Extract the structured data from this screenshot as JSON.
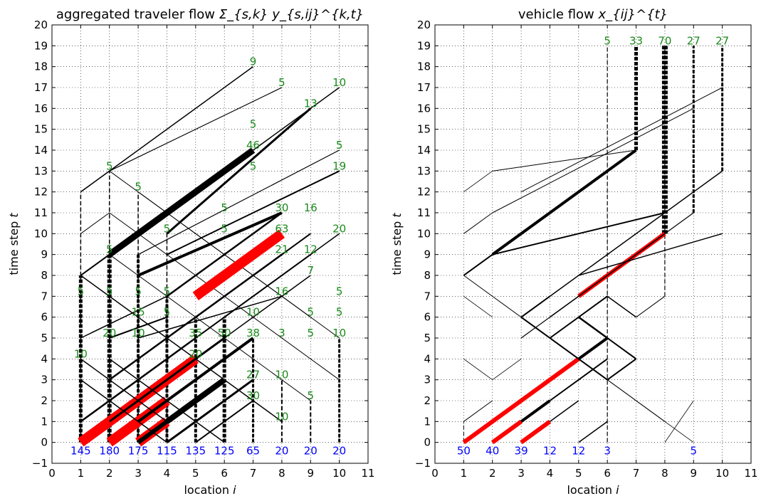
{
  "chart_data": [
    {
      "type": "line",
      "title": "aggregated traveler flow",
      "title_math": "Σ_{s,k} y_{s,ij}^{k,t}",
      "xlabel": "location",
      "xlabel_var": "i",
      "ylabel": "time step",
      "ylabel_var": "t",
      "xlim": [
        0,
        11
      ],
      "ylim": [
        -1,
        20
      ],
      "xticks": [
        "0",
        "1",
        "2",
        "3",
        "4",
        "5",
        "6",
        "7",
        "8",
        "9",
        "10",
        "11"
      ],
      "yticks": [
        "−1",
        "0",
        "1",
        "2",
        "3",
        "4",
        "5",
        "6",
        "7",
        "8",
        "9",
        "10",
        "11",
        "12",
        "13",
        "14",
        "15",
        "16",
        "17",
        "18",
        "19",
        "20"
      ],
      "grid": true,
      "colors": {
        "flow": "#000000",
        "highlight": "#ff0000",
        "label": "#1a8a1a",
        "origin_label": "#0000ff"
      },
      "origin_labels": [
        {
          "x": 1,
          "text": "145"
        },
        {
          "x": 2,
          "text": "180"
        },
        {
          "x": 3,
          "text": "175"
        },
        {
          "x": 4,
          "text": "115"
        },
        {
          "x": 5,
          "text": "135"
        },
        {
          "x": 6,
          "text": "125"
        },
        {
          "x": 7,
          "text": "65"
        },
        {
          "x": 8,
          "text": "20"
        },
        {
          "x": 9,
          "text": "20"
        },
        {
          "x": 10,
          "text": "20"
        }
      ],
      "flow_labels": [
        {
          "x": 7,
          "y": 18,
          "text": "9"
        },
        {
          "x": 8,
          "y": 17,
          "text": "5"
        },
        {
          "x": 10,
          "y": 17,
          "text": "10"
        },
        {
          "x": 9,
          "y": 16,
          "text": "13"
        },
        {
          "x": 7,
          "y": 15,
          "text": "5"
        },
        {
          "x": 7,
          "y": 14,
          "text": "46"
        },
        {
          "x": 10,
          "y": 14,
          "text": "5"
        },
        {
          "x": 2,
          "y": 13,
          "text": "5"
        },
        {
          "x": 7,
          "y": 13,
          "text": "5"
        },
        {
          "x": 10,
          "y": 13,
          "text": "19"
        },
        {
          "x": 3,
          "y": 12,
          "text": "5"
        },
        {
          "x": 6,
          "y": 11,
          "text": "5"
        },
        {
          "x": 8,
          "y": 11,
          "text": "30"
        },
        {
          "x": 9,
          "y": 11,
          "text": "16"
        },
        {
          "x": 4,
          "y": 10,
          "text": "5"
        },
        {
          "x": 6,
          "y": 10,
          "text": "5"
        },
        {
          "x": 8,
          "y": 10,
          "text": "63"
        },
        {
          "x": 10,
          "y": 10,
          "text": "20"
        },
        {
          "x": 2,
          "y": 9,
          "text": "5"
        },
        {
          "x": 8,
          "y": 9,
          "text": "21"
        },
        {
          "x": 9,
          "y": 9,
          "text": "12"
        },
        {
          "x": 9,
          "y": 8,
          "text": "7"
        },
        {
          "x": 1,
          "y": 7,
          "text": "5"
        },
        {
          "x": 2,
          "y": 7,
          "text": "5"
        },
        {
          "x": 3,
          "y": 7,
          "text": "5"
        },
        {
          "x": 4,
          "y": 7,
          "text": "5"
        },
        {
          "x": 8,
          "y": 7,
          "text": "16"
        },
        {
          "x": 10,
          "y": 7,
          "text": "5"
        },
        {
          "x": 3,
          "y": 6,
          "text": "15"
        },
        {
          "x": 4,
          "y": 6,
          "text": "5"
        },
        {
          "x": 7,
          "y": 6,
          "text": "10"
        },
        {
          "x": 9,
          "y": 6,
          "text": "5"
        },
        {
          "x": 10,
          "y": 6,
          "text": "5"
        },
        {
          "x": 2,
          "y": 5,
          "text": "20"
        },
        {
          "x": 3,
          "y": 5,
          "text": "10"
        },
        {
          "x": 5,
          "y": 5,
          "text": "35"
        },
        {
          "x": 6,
          "y": 5,
          "text": "50"
        },
        {
          "x": 7,
          "y": 5,
          "text": "38"
        },
        {
          "x": 8,
          "y": 5,
          "text": "3"
        },
        {
          "x": 9,
          "y": 5,
          "text": "5"
        },
        {
          "x": 10,
          "y": 5,
          "text": "10"
        },
        {
          "x": 1,
          "y": 4,
          "text": "10"
        },
        {
          "x": 5,
          "y": 4,
          "text": "20"
        },
        {
          "x": 7,
          "y": 3,
          "text": "27"
        },
        {
          "x": 8,
          "y": 3,
          "text": "10"
        },
        {
          "x": 7,
          "y": 2,
          "text": "30"
        },
        {
          "x": 9,
          "y": 2,
          "text": "5"
        },
        {
          "x": 8,
          "y": 1,
          "text": "10"
        }
      ],
      "segments": [
        {
          "x1": 1,
          "y1": 12,
          "x2": 7,
          "y2": 18,
          "w": 1.5
        },
        {
          "x1": 2,
          "y1": 13,
          "x2": 8,
          "y2": 17,
          "w": 1.2
        },
        {
          "x1": 1,
          "y1": 12,
          "x2": 2,
          "y2": 13,
          "w": 1.2
        },
        {
          "x1": 2,
          "y1": 13,
          "x2": 9,
          "y2": 6,
          "w": 1.0
        },
        {
          "x1": 1,
          "y1": 10,
          "x2": 2,
          "y2": 11,
          "w": 1.0
        },
        {
          "x1": 2,
          "y1": 11,
          "x2": 10,
          "y2": 3,
          "w": 1.0
        },
        {
          "x1": 3,
          "y1": 12,
          "x2": 10,
          "y2": 5,
          "w": 1.0
        },
        {
          "x1": 2,
          "y1": 9,
          "x2": 7,
          "y2": 14,
          "w": 9
        },
        {
          "x1": 3,
          "y1": 10,
          "x2": 10,
          "y2": 17,
          "w": 1.5
        },
        {
          "x1": 4,
          "y1": 10,
          "x2": 9,
          "y2": 16,
          "w": 3
        },
        {
          "x1": 3,
          "y1": 9,
          "x2": 10,
          "y2": 14,
          "w": 1.2
        },
        {
          "x1": 4,
          "y1": 9,
          "x2": 10,
          "y2": 13,
          "w": 2
        },
        {
          "x1": 2,
          "y1": 9,
          "x2": 9,
          "y2": 2,
          "w": 1.0
        },
        {
          "x1": 1,
          "y1": 8,
          "x2": 8,
          "y2": 1,
          "w": 1.5
        },
        {
          "x1": 1,
          "y1": 8,
          "x2": 2,
          "y2": 9,
          "w": 2
        },
        {
          "x1": 3,
          "y1": 8,
          "x2": 8,
          "y2": 11,
          "w": 4
        },
        {
          "x1": 4,
          "y1": 7,
          "x2": 8,
          "y2": 11,
          "w": 2.5
        },
        {
          "x1": 5,
          "y1": 7,
          "x2": 8,
          "y2": 10,
          "w": 14,
          "c": "highlight"
        },
        {
          "x1": 5,
          "y1": 6,
          "x2": 9,
          "y2": 10,
          "w": 2
        },
        {
          "x1": 6,
          "y1": 6,
          "x2": 10,
          "y2": 10,
          "w": 1.5
        },
        {
          "x1": 2,
          "y1": 3,
          "x2": 8,
          "y2": 9,
          "w": 2.5
        },
        {
          "x1": 3,
          "y1": 3,
          "x2": 9,
          "y2": 9,
          "w": 2
        },
        {
          "x1": 4,
          "y1": 3,
          "x2": 9,
          "y2": 8,
          "w": 1.5
        },
        {
          "x1": 1,
          "y1": 5,
          "x2": 4,
          "y2": 7,
          "w": 1.5
        },
        {
          "x1": 2,
          "y1": 5,
          "x2": 4,
          "y2": 6,
          "w": 2
        },
        {
          "x1": 3,
          "y1": 5,
          "x2": 8,
          "y2": 7,
          "w": 1.5
        },
        {
          "x1": 1,
          "y1": 0,
          "x2": 5,
          "y2": 4,
          "w": 14,
          "c": "highlight"
        },
        {
          "x1": 2,
          "y1": 0,
          "x2": 4,
          "y2": 2,
          "w": 14,
          "c": "highlight"
        },
        {
          "x1": 3,
          "y1": 0,
          "x2": 4,
          "y2": 1,
          "w": 14,
          "c": "highlight"
        },
        {
          "x1": 4,
          "y1": 1,
          "x2": 6,
          "y2": 3,
          "w": 8
        },
        {
          "x1": 1,
          "y1": 1,
          "x2": 5,
          "y2": 5,
          "w": 2.5
        },
        {
          "x1": 2,
          "y1": 1,
          "x2": 6,
          "y2": 5,
          "w": 3
        },
        {
          "x1": 3,
          "y1": 1,
          "x2": 7,
          "y2": 5,
          "w": 4
        },
        {
          "x1": 3,
          "y1": 0,
          "x2": 6,
          "y2": 3,
          "w": 6
        },
        {
          "x1": 4,
          "y1": 0,
          "x2": 7,
          "y2": 3,
          "w": 3
        },
        {
          "x1": 5,
          "y1": 0,
          "x2": 7,
          "y2": 2,
          "w": 2
        },
        {
          "x1": 1,
          "y1": 4,
          "x2": 4,
          "y2": 1,
          "w": 1.5
        },
        {
          "x1": 2,
          "y1": 4,
          "x2": 6,
          "y2": 0,
          "w": 1.5
        },
        {
          "x1": 1,
          "y1": 3,
          "x2": 4,
          "y2": 0,
          "w": 1.5
        }
      ],
      "verticals": [
        {
          "x": 1,
          "y1": 0,
          "y2": 12,
          "w": 1.5
        },
        {
          "x": 1,
          "y1": 0,
          "y2": 8,
          "w": 5
        },
        {
          "x": 2,
          "y1": 0,
          "y2": 13,
          "w": 1.5
        },
        {
          "x": 2,
          "y1": 0,
          "y2": 9,
          "w": 6
        },
        {
          "x": 3,
          "y1": 0,
          "y2": 12,
          "w": 1.5
        },
        {
          "x": 3,
          "y1": 0,
          "y2": 9,
          "w": 4
        },
        {
          "x": 4,
          "y1": 0,
          "y2": 10,
          "w": 1.5
        },
        {
          "x": 4,
          "y1": 0,
          "y2": 7,
          "w": 4
        },
        {
          "x": 5,
          "y1": 0,
          "y2": 6,
          "w": 4
        },
        {
          "x": 6,
          "y1": 0,
          "y2": 6,
          "w": 5
        },
        {
          "x": 7,
          "y1": 0,
          "y2": 5,
          "w": 3
        },
        {
          "x": 8,
          "y1": 0,
          "y2": 3,
          "w": 2
        },
        {
          "x": 9,
          "y1": 0,
          "y2": 2,
          "w": 2
        },
        {
          "x": 10,
          "y1": 0,
          "y2": 5,
          "w": 3
        }
      ]
    },
    {
      "type": "line",
      "title": "vehicle flow",
      "title_math": "x_{ij}^{t}",
      "xlabel": "location",
      "xlabel_var": "i",
      "ylabel": "time step",
      "ylabel_var": "t",
      "xlim": [
        0,
        11
      ],
      "ylim": [
        -1,
        20
      ],
      "xticks": [
        "0",
        "1",
        "2",
        "3",
        "4",
        "5",
        "6",
        "7",
        "8",
        "9",
        "10",
        "11"
      ],
      "yticks": [
        "−1",
        "0",
        "1",
        "2",
        "3",
        "4",
        "5",
        "6",
        "7",
        "8",
        "9",
        "10",
        "11",
        "12",
        "13",
        "14",
        "15",
        "16",
        "17",
        "18",
        "19",
        "20"
      ],
      "grid": true,
      "colors": {
        "flow": "#000000",
        "highlight": "#ff0000",
        "label": "#1a8a1a",
        "origin_label": "#0000ff"
      },
      "origin_labels": [
        {
          "x": 1,
          "text": "50"
        },
        {
          "x": 2,
          "text": "40"
        },
        {
          "x": 3,
          "text": "39"
        },
        {
          "x": 4,
          "text": "12"
        },
        {
          "x": 5,
          "text": "12"
        },
        {
          "x": 6,
          "text": "3"
        },
        {
          "x": 9,
          "text": "5"
        }
      ],
      "flow_labels": [
        {
          "x": 6,
          "y": 19,
          "text": "5"
        },
        {
          "x": 7,
          "y": 19,
          "text": "33"
        },
        {
          "x": 8,
          "y": 19,
          "text": "70"
        },
        {
          "x": 9,
          "y": 19,
          "text": "27"
        },
        {
          "x": 10,
          "y": 19,
          "text": "27"
        }
      ],
      "segments": [
        {
          "x1": 1,
          "y1": 0,
          "x2": 4,
          "y2": 3,
          "w": 6,
          "c": "highlight"
        },
        {
          "x1": 2,
          "y1": 0,
          "x2": 3,
          "y2": 1,
          "w": 6,
          "c": "highlight"
        },
        {
          "x1": 3,
          "y1": 0,
          "x2": 4,
          "y2": 1,
          "w": 6,
          "c": "highlight"
        },
        {
          "x1": 4,
          "y1": 3,
          "x2": 5,
          "y2": 4,
          "w": 6,
          "c": "highlight"
        },
        {
          "x1": 5,
          "y1": 7,
          "x2": 8,
          "y2": 10,
          "w": 6,
          "c": "highlight"
        },
        {
          "x1": 3,
          "y1": 1,
          "x2": 4,
          "y2": 2,
          "w": 4
        },
        {
          "x1": 4,
          "y1": 1,
          "x2": 5,
          "y2": 2,
          "w": 1.5
        },
        {
          "x1": 5,
          "y1": 0,
          "x2": 6,
          "y2": 1,
          "w": 1.5
        },
        {
          "x1": 1,
          "y1": 1,
          "x2": 2,
          "y2": 2,
          "w": 1.0
        },
        {
          "x1": 4,
          "y1": 2,
          "x2": 6,
          "y2": 4,
          "w": 2
        },
        {
          "x1": 5,
          "y1": 4,
          "x2": 6,
          "y2": 5,
          "w": 4
        },
        {
          "x1": 2,
          "y1": 9,
          "x2": 7,
          "y2": 14,
          "w": 4
        },
        {
          "x1": 1,
          "y1": 8,
          "x2": 2,
          "y2": 9,
          "w": 2
        },
        {
          "x1": 1,
          "y1": 8,
          "x2": 8,
          "y2": 1,
          "w": 1.0
        },
        {
          "x1": 2,
          "y1": 9,
          "x2": 8,
          "y2": 11,
          "w": 2
        },
        {
          "x1": 1,
          "y1": 10,
          "x2": 2,
          "y2": 11,
          "w": 1.0
        },
        {
          "x1": 2,
          "y1": 11,
          "x2": 9,
          "y2": 16,
          "w": 1.0
        },
        {
          "x1": 3,
          "y1": 12,
          "x2": 10,
          "y2": 17,
          "w": 1.0
        },
        {
          "x1": 2,
          "y1": 13,
          "x2": 7,
          "y2": 14,
          "w": 1.0
        },
        {
          "x1": 1,
          "y1": 12,
          "x2": 2,
          "y2": 13,
          "w": 0.8
        },
        {
          "x1": 3,
          "y1": 6,
          "x2": 4,
          "y2": 7,
          "w": 2
        },
        {
          "x1": 4,
          "y1": 6,
          "x2": 8,
          "y2": 10,
          "w": 1.5
        },
        {
          "x1": 3,
          "y1": 6,
          "x2": 6,
          "y2": 3,
          "w": 2
        },
        {
          "x1": 5,
          "y1": 6,
          "x2": 6,
          "y2": 5,
          "w": 2.5
        },
        {
          "x1": 6,
          "y1": 5,
          "x2": 7,
          "y2": 4,
          "w": 2
        },
        {
          "x1": 4,
          "y1": 5,
          "x2": 6,
          "y2": 7,
          "w": 2
        },
        {
          "x1": 6,
          "y1": 7,
          "x2": 7,
          "y2": 6,
          "w": 1.5
        },
        {
          "x1": 7,
          "y1": 6,
          "x2": 8,
          "y2": 7,
          "w": 1.0
        },
        {
          "x1": 3,
          "y1": 5,
          "x2": 9,
          "y2": 11,
          "w": 1.2
        },
        {
          "x1": 4,
          "y1": 7,
          "x2": 10,
          "y2": 13,
          "w": 1.5
        },
        {
          "x1": 6,
          "y1": 3,
          "x2": 7,
          "y2": 4,
          "w": 2
        },
        {
          "x1": 7,
          "y1": 4,
          "x2": 6,
          "y2": 5,
          "w": 1.5
        },
        {
          "x1": 5,
          "y1": 8,
          "x2": 10,
          "y2": 10,
          "w": 1.5
        },
        {
          "x1": 1,
          "y1": 7,
          "x2": 2,
          "y2": 6,
          "w": 0.8
        },
        {
          "x1": 1,
          "y1": 4,
          "x2": 2,
          "y2": 3,
          "w": 0.8
        },
        {
          "x1": 2,
          "y1": 3,
          "x2": 3,
          "y2": 4,
          "w": 0.8
        },
        {
          "x1": 6,
          "y1": 3,
          "x2": 9,
          "y2": 0,
          "w": 0.8
        },
        {
          "x1": 8,
          "y1": 0,
          "x2": 9,
          "y2": 2,
          "w": 0.8
        }
      ],
      "verticals": [
        {
          "x": 6,
          "y1": 0,
          "y2": 19,
          "w": 1.2
        },
        {
          "x": 7,
          "y1": 14,
          "y2": 19,
          "w": 5
        },
        {
          "x": 8,
          "y1": 7,
          "y2": 19,
          "w": 1.2
        },
        {
          "x": 8,
          "y1": 10,
          "y2": 19,
          "w": 8
        },
        {
          "x": 9,
          "y1": 11,
          "y2": 19,
          "w": 3
        },
        {
          "x": 10,
          "y1": 13,
          "y2": 19,
          "w": 3
        },
        {
          "x": 1,
          "y1": 0,
          "y2": 1,
          "w": 1.0
        }
      ]
    }
  ]
}
